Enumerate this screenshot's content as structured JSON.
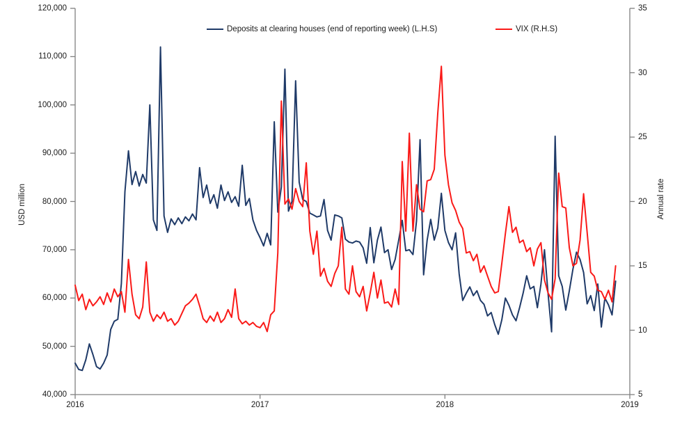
{
  "chart_data": {
    "type": "line",
    "title": "",
    "grid": false,
    "legend": {
      "position": "top-inside",
      "entries": [
        "Deposits at clearing houses (end of reporting week) (L.H.S)",
        "VIX (R.H.S)"
      ]
    },
    "x_axis": {
      "tick_labels": [
        "2016",
        "2017",
        "2018",
        "2019"
      ],
      "start_year": 2016,
      "end_year": 2019,
      "points_per_year": 52,
      "frequency": "weekly"
    },
    "left_axis": {
      "label": "USD million",
      "min": 40000,
      "max": 120000,
      "step": 10000,
      "tick_labels": [
        "120,000",
        "110,000",
        "100,000",
        "90,000",
        "80,000",
        "70,000",
        "60,000",
        "50,000",
        "40,000"
      ]
    },
    "right_axis": {
      "label": "Annual rate",
      "min": 5,
      "max": 35,
      "step": 5,
      "tick_labels": [
        "35",
        "30",
        "25",
        "20",
        "15",
        "10",
        "5"
      ]
    },
    "series": [
      {
        "name": "Deposits at clearing houses (end of reporting week) (L.H.S)",
        "axis": "left",
        "color": "#1f3a68",
        "values": [
          46500,
          45200,
          45000,
          47200,
          50500,
          48300,
          45800,
          45300,
          46500,
          48200,
          53500,
          55200,
          55600,
          63000,
          82000,
          90500,
          83500,
          86200,
          83200,
          85600,
          83800,
          100000,
          76200,
          74000,
          112000,
          77000,
          73600,
          76400,
          75200,
          76600,
          75400,
          76800,
          76000,
          77400,
          76200,
          87000,
          80800,
          83400,
          79600,
          81400,
          78600,
          83400,
          80200,
          82000,
          79800,
          81000,
          79000,
          87500,
          79200,
          80600,
          76200,
          74000,
          72500,
          70800,
          73400,
          71000,
          96500,
          77800,
          83000,
          107400,
          78000,
          80000,
          105000,
          84000,
          80400,
          80000,
          77600,
          77200,
          76800,
          77000,
          80400,
          74000,
          72000,
          77200,
          77000,
          76600,
          72200,
          71600,
          71400,
          71800,
          71600,
          70400,
          67200,
          74600,
          67300,
          72000,
          74700,
          69400,
          70000,
          65900,
          68000,
          72000,
          76100,
          69800,
          70000,
          69000,
          76000,
          92800,
          64800,
          72000,
          76300,
          72000,
          74500,
          81700,
          74000,
          71500,
          70000,
          73500,
          65000,
          59500,
          61000,
          62300,
          60500,
          61500,
          59500,
          58700,
          56300,
          57000,
          54500,
          52500,
          55500,
          60000,
          58500,
          56500,
          55300,
          58000,
          61000,
          64600,
          61900,
          62400,
          58000,
          62900,
          70000,
          61000,
          53000,
          93500,
          64600,
          62400,
          57500,
          61500,
          66000,
          69500,
          68000,
          65300,
          58800,
          60500,
          57400,
          62900,
          54000,
          60000,
          58600,
          56500,
          63500
        ]
      },
      {
        "name": "VIX (R.H.S)",
        "axis": "right",
        "color": "#fa1a18",
        "values": [
          13.5,
          12.3,
          12.8,
          11.6,
          12.4,
          11.9,
          12.2,
          12.6,
          12.0,
          12.9,
          12.2,
          13.2,
          12.6,
          13.0,
          11.4,
          15.5,
          12.8,
          11.2,
          10.9,
          11.8,
          15.3,
          11.4,
          10.7,
          11.2,
          10.9,
          11.4,
          10.7,
          10.9,
          10.4,
          10.7,
          11.3,
          11.9,
          12.1,
          12.4,
          12.8,
          11.9,
          10.9,
          10.6,
          11.1,
          10.7,
          11.4,
          10.6,
          10.9,
          11.6,
          11.0,
          13.2,
          10.9,
          10.5,
          10.7,
          10.4,
          10.6,
          10.3,
          10.2,
          10.6,
          9.9,
          11.2,
          11.5,
          16.0,
          27.8,
          19.8,
          20.2,
          19.4,
          21.0,
          20.0,
          19.6,
          23.0,
          17.7,
          15.9,
          17.7,
          14.2,
          14.8,
          13.8,
          13.4,
          14.4,
          15.0,
          18.0,
          13.2,
          12.8,
          15.0,
          13.0,
          12.6,
          13.4,
          11.5,
          12.9,
          14.5,
          12.5,
          13.9,
          12.1,
          12.2,
          11.8,
          13.2,
          12.0,
          23.1,
          17.7,
          25.3,
          17.7,
          21.3,
          19.4,
          19.2,
          21.6,
          21.7,
          22.5,
          26.9,
          30.5,
          23.6,
          21.3,
          19.9,
          19.3,
          18.4,
          17.9,
          16.0,
          16.1,
          15.4,
          15.9,
          14.5,
          15.0,
          14.2,
          13.4,
          12.9,
          13.0,
          15.2,
          17.5,
          19.6,
          17.6,
          18.0,
          16.8,
          17.0,
          16.1,
          16.4,
          15.0,
          16.3,
          16.8,
          13.9,
          12.9,
          12.4,
          14.0,
          22.2,
          19.6,
          19.5,
          16.4,
          15.0,
          15.2,
          17.0,
          20.6,
          17.6,
          14.5,
          14.2,
          13.1,
          13.0,
          12.4,
          13.1,
          12.2,
          15.0
        ]
      }
    ]
  },
  "colors": {
    "deposits_line": "#1f3a68",
    "vix_line": "#fa1a18",
    "axis": "#808080",
    "text": "#1a1a1a",
    "background": "#ffffff"
  }
}
